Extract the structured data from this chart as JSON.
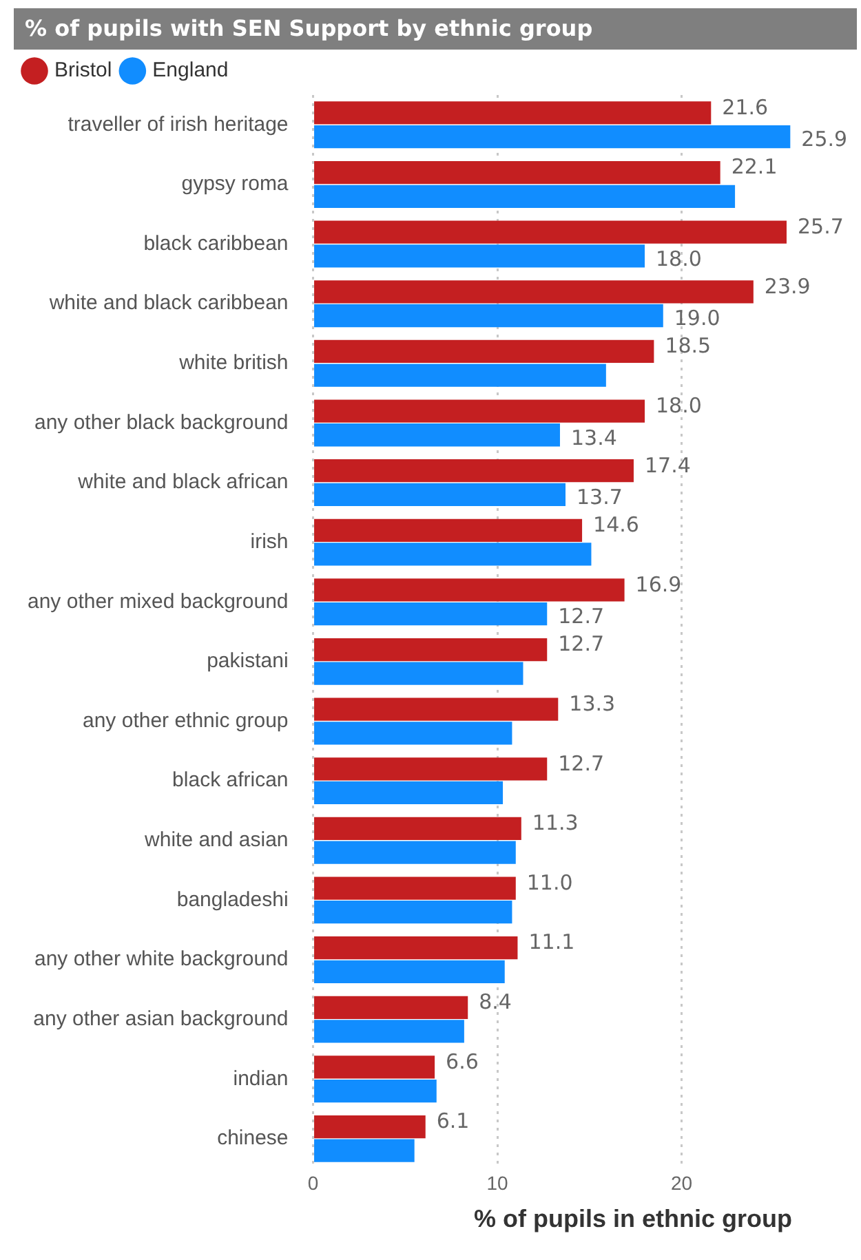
{
  "chart_data": {
    "type": "bar",
    "orientation": "horizontal",
    "title": "% of pupils with SEN Support by ethnic group",
    "xlabel": "% of pupils in ethnic group",
    "categories": [
      "traveller of irish heritage",
      "gypsy roma",
      "black caribbean",
      "white and black caribbean",
      "white british",
      "any other black background",
      "white and black african",
      "irish",
      "any other mixed background",
      "pakistani",
      "any other ethnic group",
      "black african",
      "white and asian",
      "bangladeshi",
      "any other white background",
      "any other asian background",
      "indian",
      "chinese"
    ],
    "series": [
      {
        "name": "Bristol",
        "color": "#c41f21",
        "values": [
          21.6,
          22.1,
          25.7,
          23.9,
          18.5,
          18.0,
          17.4,
          14.6,
          16.9,
          12.7,
          13.3,
          12.7,
          11.3,
          11.0,
          11.1,
          8.4,
          6.6,
          6.1
        ],
        "value_labels": [
          "21.6",
          "22.1",
          "25.7",
          "23.9",
          "18.5",
          "18.0",
          "17.4",
          "14.6",
          "16.9",
          "12.7",
          "13.3",
          "12.7",
          "11.3",
          "11.0",
          "11.1",
          "8.4",
          "6.6",
          "6.1"
        ]
      },
      {
        "name": "England",
        "color": "#118dff",
        "values": [
          25.9,
          22.9,
          18.0,
          19.0,
          15.9,
          13.4,
          13.7,
          15.1,
          12.7,
          11.4,
          10.8,
          10.3,
          11.0,
          10.8,
          10.4,
          8.2,
          6.7,
          5.5
        ],
        "value_labels": [
          "25.9",
          null,
          "18.0",
          "19.0",
          null,
          "13.4",
          "13.7",
          null,
          "12.7",
          null,
          null,
          null,
          null,
          null,
          null,
          null,
          null,
          null
        ]
      }
    ],
    "xlim": [
      0,
      26
    ],
    "xticks": [
      0,
      10,
      20
    ],
    "grid": "x",
    "legend": "top left"
  }
}
